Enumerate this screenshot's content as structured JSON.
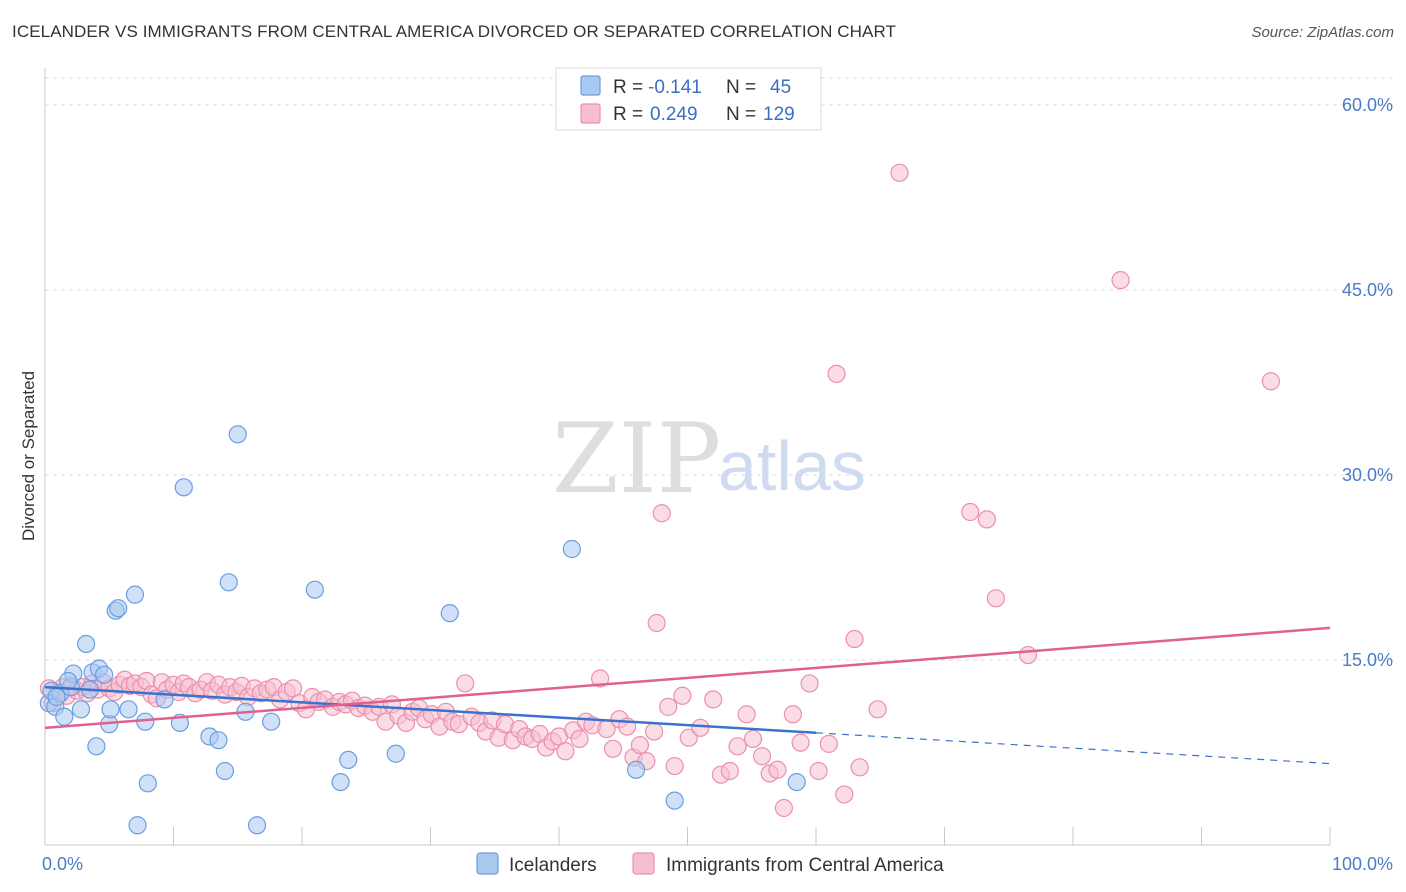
{
  "title": "ICELANDER VS IMMIGRANTS FROM CENTRAL AMERICA DIVORCED OR SEPARATED CORRELATION CHART",
  "source": "Source: ZipAtlas.com",
  "watermark": {
    "zip": "ZIP",
    "atlas": "atlas"
  },
  "colors": {
    "blue_fill": "#a9c8f0",
    "blue_stroke": "#6a9ee0",
    "blue_line": "#3b73cc",
    "pink_fill": "#f6bfd0",
    "pink_stroke": "#ec8fae",
    "pink_line": "#e0608e",
    "grid": "#dcdcdc",
    "axis_text": "#4a7cc9"
  },
  "chart_data": {
    "type": "scatter",
    "title": "ICELANDER VS IMMIGRANTS FROM CENTRAL AMERICA DIVORCED OR SEPARATED CORRELATION CHART",
    "xlabel": "",
    "ylabel": "Divorced or Separated",
    "xlim": [
      0,
      100
    ],
    "ylim": [
      0,
      63
    ],
    "y_ticks": [
      15,
      30,
      45,
      60
    ],
    "y_tick_labels": [
      "15.0%",
      "30.0%",
      "45.0%",
      "60.0%"
    ],
    "x_tick_labels": [
      "0.0%",
      "100.0%"
    ],
    "grid": true,
    "legend_position": "top-center",
    "legend": [
      {
        "R_label": "R = ",
        "R": "-0.141",
        "N_label": "N = ",
        "N": "45"
      },
      {
        "R_label": "R = ",
        "R": "0.249",
        "N_label": "N = ",
        "N": "129"
      }
    ],
    "series": [
      {
        "name": "Icelanders",
        "trend": {
          "x0": 0,
          "y0": 12.8,
          "x1": 60,
          "y1": 9.1,
          "dash_to_x": 100,
          "dash_to_y": 6.6
        },
        "points": [
          [
            0.3,
            11.5
          ],
          [
            0.5,
            12.5
          ],
          [
            0.8,
            11.2
          ],
          [
            1.2,
            12.3
          ],
          [
            1.5,
            10.4
          ],
          [
            2.0,
            12.8
          ],
          [
            2.2,
            13.9
          ],
          [
            2.8,
            11.0
          ],
          [
            3.2,
            16.3
          ],
          [
            3.5,
            12.6
          ],
          [
            3.7,
            14.0
          ],
          [
            4.0,
            8.0
          ],
          [
            4.2,
            14.3
          ],
          [
            4.6,
            13.8
          ],
          [
            5.0,
            9.8
          ],
          [
            5.1,
            11.0
          ],
          [
            5.5,
            19.0
          ],
          [
            5.7,
            19.2
          ],
          [
            6.5,
            11.0
          ],
          [
            7.0,
            20.3
          ],
          [
            7.2,
            1.6
          ],
          [
            7.8,
            10.0
          ],
          [
            8.0,
            5.0
          ],
          [
            9.3,
            11.8
          ],
          [
            10.5,
            9.9
          ],
          [
            10.8,
            29.0
          ],
          [
            12.8,
            8.8
          ],
          [
            13.5,
            8.5
          ],
          [
            14.0,
            6.0
          ],
          [
            14.3,
            21.3
          ],
          [
            15.0,
            33.3
          ],
          [
            15.6,
            10.8
          ],
          [
            16.5,
            1.6
          ],
          [
            17.6,
            10.0
          ],
          [
            21.0,
            20.7
          ],
          [
            23.0,
            5.1
          ],
          [
            23.6,
            6.9
          ],
          [
            27.3,
            7.4
          ],
          [
            31.5,
            18.8
          ],
          [
            41.0,
            24.0
          ],
          [
            46.0,
            6.1
          ],
          [
            49.0,
            3.6
          ],
          [
            58.5,
            5.1
          ],
          [
            0.9,
            12.0
          ],
          [
            1.8,
            13.3
          ]
        ]
      },
      {
        "name": "Immigrants from Central America",
        "trend": {
          "x0": 0,
          "y0": 9.5,
          "x1": 100,
          "y1": 17.6
        },
        "points": [
          [
            0.3,
            12.7
          ],
          [
            0.6,
            11.5
          ],
          [
            1.0,
            12.4
          ],
          [
            1.4,
            12.8
          ],
          [
            1.7,
            12.1
          ],
          [
            2.1,
            12.9
          ],
          [
            2.5,
            12.5
          ],
          [
            2.9,
            12.8
          ],
          [
            3.3,
            12.3
          ],
          [
            3.7,
            13.1
          ],
          [
            4.1,
            12.6
          ],
          [
            4.5,
            13.2
          ],
          [
            5.0,
            12.7
          ],
          [
            5.4,
            12.4
          ],
          [
            5.8,
            13.0
          ],
          [
            6.2,
            13.4
          ],
          [
            6.6,
            12.9
          ],
          [
            7.0,
            13.1
          ],
          [
            7.5,
            12.8
          ],
          [
            7.9,
            13.3
          ],
          [
            8.3,
            12.2
          ],
          [
            8.7,
            11.9
          ],
          [
            9.1,
            13.2
          ],
          [
            9.5,
            12.6
          ],
          [
            10.0,
            13.0
          ],
          [
            10.4,
            12.4
          ],
          [
            10.8,
            13.1
          ],
          [
            11.2,
            12.8
          ],
          [
            11.7,
            12.3
          ],
          [
            12.1,
            12.6
          ],
          [
            12.6,
            13.2
          ],
          [
            13.0,
            12.5
          ],
          [
            13.5,
            13.0
          ],
          [
            14.0,
            12.2
          ],
          [
            14.4,
            12.8
          ],
          [
            14.9,
            12.4
          ],
          [
            15.3,
            12.9
          ],
          [
            15.8,
            12.0
          ],
          [
            16.3,
            12.7
          ],
          [
            16.8,
            12.3
          ],
          [
            17.3,
            12.6
          ],
          [
            17.8,
            12.8
          ],
          [
            18.3,
            11.8
          ],
          [
            18.8,
            12.4
          ],
          [
            19.3,
            12.7
          ],
          [
            19.8,
            11.5
          ],
          [
            20.3,
            11.0
          ],
          [
            20.8,
            12.0
          ],
          [
            21.3,
            11.6
          ],
          [
            21.8,
            11.8
          ],
          [
            22.4,
            11.2
          ],
          [
            22.9,
            11.6
          ],
          [
            23.4,
            11.4
          ],
          [
            23.9,
            11.7
          ],
          [
            24.4,
            11.1
          ],
          [
            24.9,
            11.3
          ],
          [
            25.5,
            10.8
          ],
          [
            26.0,
            11.2
          ],
          [
            26.5,
            10.0
          ],
          [
            27.0,
            11.4
          ],
          [
            27.5,
            10.5
          ],
          [
            28.1,
            9.9
          ],
          [
            28.6,
            10.8
          ],
          [
            29.1,
            11.1
          ],
          [
            29.6,
            10.2
          ],
          [
            30.1,
            10.6
          ],
          [
            30.7,
            9.6
          ],
          [
            31.2,
            10.8
          ],
          [
            31.7,
            10.0
          ],
          [
            32.2,
            9.8
          ],
          [
            32.7,
            13.1
          ],
          [
            33.2,
            10.4
          ],
          [
            33.8,
            9.9
          ],
          [
            34.3,
            9.2
          ],
          [
            34.8,
            10.1
          ],
          [
            35.3,
            8.7
          ],
          [
            35.8,
            9.8
          ],
          [
            36.4,
            8.5
          ],
          [
            36.9,
            9.4
          ],
          [
            37.4,
            8.8
          ],
          [
            37.9,
            8.6
          ],
          [
            38.5,
            9.0
          ],
          [
            39.0,
            7.9
          ],
          [
            39.5,
            8.4
          ],
          [
            40.0,
            8.8
          ],
          [
            40.5,
            7.6
          ],
          [
            41.1,
            9.3
          ],
          [
            41.6,
            8.6
          ],
          [
            42.1,
            10.0
          ],
          [
            42.6,
            9.7
          ],
          [
            43.2,
            13.5
          ],
          [
            43.7,
            9.4
          ],
          [
            44.2,
            7.8
          ],
          [
            44.7,
            10.2
          ],
          [
            45.3,
            9.6
          ],
          [
            45.8,
            7.1
          ],
          [
            46.3,
            8.1
          ],
          [
            46.8,
            6.8
          ],
          [
            47.4,
            9.2
          ],
          [
            48.0,
            26.9
          ],
          [
            48.5,
            11.2
          ],
          [
            49.0,
            6.4
          ],
          [
            49.6,
            12.1
          ],
          [
            50.1,
            8.7
          ],
          [
            51.0,
            9.5
          ],
          [
            52.0,
            11.8
          ],
          [
            52.6,
            5.7
          ],
          [
            53.3,
            6.0
          ],
          [
            53.9,
            8.0
          ],
          [
            54.6,
            10.6
          ],
          [
            55.1,
            8.6
          ],
          [
            55.8,
            7.2
          ],
          [
            56.4,
            5.8
          ],
          [
            57.0,
            6.1
          ],
          [
            57.5,
            3.0
          ],
          [
            58.2,
            10.6
          ],
          [
            58.8,
            8.3
          ],
          [
            59.5,
            13.1
          ],
          [
            60.2,
            6.0
          ],
          [
            61.0,
            8.2
          ],
          [
            61.6,
            38.2
          ],
          [
            62.2,
            4.1
          ],
          [
            63.0,
            16.7
          ],
          [
            63.4,
            6.3
          ],
          [
            64.8,
            11.0
          ],
          [
            66.5,
            54.5
          ],
          [
            72.0,
            27.0
          ],
          [
            73.3,
            26.4
          ],
          [
            74.0,
            20.0
          ],
          [
            76.5,
            15.4
          ],
          [
            83.7,
            45.8
          ],
          [
            95.4,
            37.6
          ],
          [
            47.6,
            18.0
          ]
        ]
      }
    ]
  }
}
